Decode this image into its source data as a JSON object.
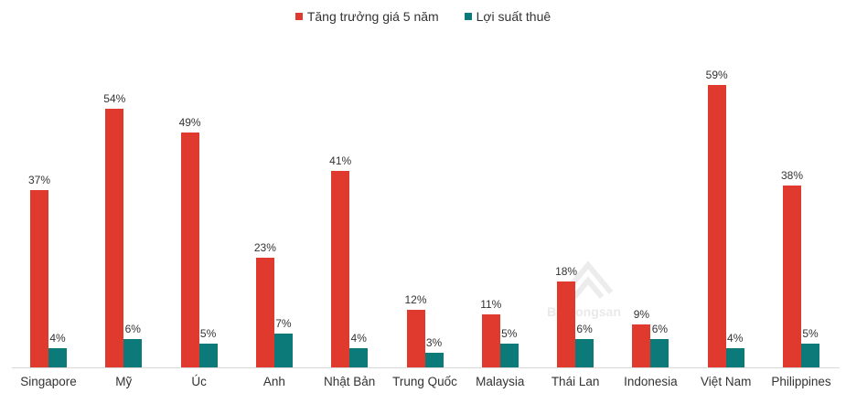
{
  "chart_data": {
    "type": "bar",
    "title": "",
    "xlabel": "",
    "ylabel": "",
    "ylim": [
      0,
      65
    ],
    "grid": false,
    "legend_position": "top",
    "categories": [
      "Singapore",
      "Mỹ",
      "Úc",
      "Anh",
      "Nhật Bản",
      "Trung Quốc",
      "Malaysia",
      "Thái Lan",
      "Indonesia",
      "Việt Nam",
      "Philippines"
    ],
    "series": [
      {
        "name": "Tăng trưởng giá 5 năm",
        "color": "#e03a2f",
        "values": [
          37,
          54,
          49,
          23,
          41,
          12,
          11,
          18,
          9,
          59,
          38
        ]
      },
      {
        "name": "Lợi suất thuê",
        "color": "#0b7a78",
        "values": [
          4,
          6,
          5,
          7,
          4,
          3,
          5,
          6,
          6,
          4,
          5
        ]
      }
    ],
    "value_labels": {
      "growth": [
        "37%",
        "54%",
        "49%",
        "23%",
        "41%",
        "12%",
        "11%",
        "18%",
        "9%",
        "59%",
        "38%"
      ],
      "yield": [
        "4%",
        "6%",
        "5%",
        "7%",
        "4%",
        "3%",
        "5%",
        "6%",
        "6%",
        "4%",
        "5%"
      ]
    }
  },
  "legend": {
    "items": [
      {
        "label": "Tăng trưởng giá 5 năm",
        "color": "#e03a2f"
      },
      {
        "label": "Lợi suất thuê",
        "color": "#0b7a78"
      }
    ]
  },
  "watermark": {
    "text": "Batdongsan"
  }
}
